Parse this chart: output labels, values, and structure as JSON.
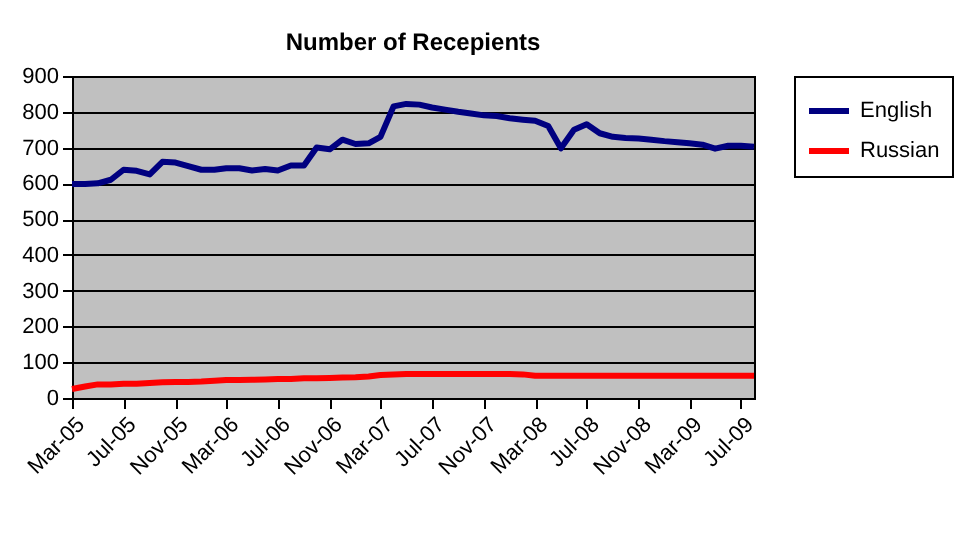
{
  "chart_data": {
    "type": "line",
    "title": "Number of Recepients",
    "x": [
      "2005-03",
      "2005-04",
      "2005-05",
      "2005-06",
      "2005-07",
      "2005-08",
      "2005-09",
      "2005-10",
      "2005-11",
      "2005-12",
      "2006-01",
      "2006-02",
      "2006-03",
      "2006-04",
      "2006-05",
      "2006-06",
      "2006-07",
      "2006-08",
      "2006-09",
      "2006-10",
      "2006-11",
      "2006-12",
      "2007-01",
      "2007-02",
      "2007-03",
      "2007-04",
      "2007-05",
      "2007-06",
      "2007-07",
      "2007-08",
      "2007-09",
      "2007-10",
      "2007-11",
      "2007-12",
      "2008-01",
      "2008-02",
      "2008-03",
      "2008-04",
      "2008-05",
      "2008-06",
      "2008-07",
      "2008-08",
      "2008-09",
      "2008-10",
      "2008-11",
      "2008-12",
      "2009-01",
      "2009-02",
      "2009-03",
      "2009-04",
      "2009-05",
      "2009-06",
      "2009-07",
      "2009-08"
    ],
    "series": [
      {
        "name": "English",
        "color": "#000080",
        "values": [
          598,
          598,
          600,
          610,
          638,
          635,
          625,
          660,
          658,
          648,
          638,
          638,
          642,
          642,
          636,
          640,
          636,
          650,
          650,
          700,
          695,
          722,
          710,
          712,
          730,
          815,
          822,
          820,
          812,
          806,
          800,
          795,
          790,
          788,
          782,
          778,
          775,
          760,
          698,
          750,
          765,
          740,
          730,
          727,
          725,
          722,
          718,
          715,
          712,
          708,
          697,
          705,
          705,
          702
        ]
      },
      {
        "name": "Russian",
        "color": "#ff0000",
        "values": [
          25,
          32,
          38,
          38,
          40,
          40,
          42,
          44,
          45,
          45,
          46,
          48,
          50,
          50,
          51,
          52,
          53,
          53,
          55,
          55,
          56,
          57,
          58,
          60,
          64,
          66,
          67,
          67,
          67,
          67,
          67,
          67,
          67,
          67,
          67,
          66,
          62,
          62,
          62,
          62,
          62,
          62,
          62,
          62,
          62,
          62,
          62,
          62,
          62,
          62,
          62,
          62,
          62,
          62
        ]
      }
    ],
    "xlim": [
      "2005-03",
      "2009-08"
    ],
    "xticks": [
      {
        "value": "2005-03",
        "label": "Mar-05"
      },
      {
        "value": "2005-07",
        "label": "Jul-05"
      },
      {
        "value": "2005-11",
        "label": "Nov-05"
      },
      {
        "value": "2006-03",
        "label": "Mar-06"
      },
      {
        "value": "2006-07",
        "label": "Jul-06"
      },
      {
        "value": "2006-11",
        "label": "Nov-06"
      },
      {
        "value": "2007-03",
        "label": "Mar-07"
      },
      {
        "value": "2007-07",
        "label": "Jul-07"
      },
      {
        "value": "2007-11",
        "label": "Nov-07"
      },
      {
        "value": "2008-03",
        "label": "Mar-08"
      },
      {
        "value": "2008-07",
        "label": "Jul-08"
      },
      {
        "value": "2008-11",
        "label": "Nov-08"
      },
      {
        "value": "2009-03",
        "label": "Mar-09"
      },
      {
        "value": "2009-07",
        "label": "Jul-09"
      }
    ],
    "ylim": [
      0,
      900
    ],
    "yticks": [
      0,
      100,
      200,
      300,
      400,
      500,
      600,
      700,
      800,
      900
    ],
    "grid": "y",
    "legend": "right",
    "marker": "none",
    "line_style": "solid"
  }
}
